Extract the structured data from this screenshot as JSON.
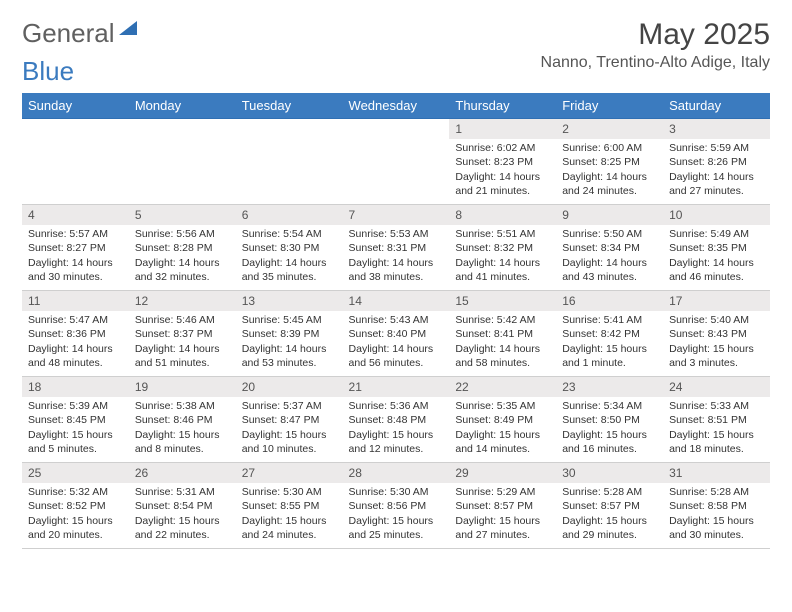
{
  "brand": {
    "part1": "General",
    "part2": "Blue"
  },
  "title": "May 2025",
  "location": "Nanno, Trentino-Alto Adige, Italy",
  "colors": {
    "header_bg": "#3b7bbf",
    "header_text": "#ffffff",
    "daynum_bg": "#eceaea",
    "border": "#cfcfcf",
    "text": "#333333",
    "background": "#ffffff"
  },
  "typography": {
    "title_fontsize": 30,
    "location_fontsize": 16,
    "header_fontsize": 13,
    "cell_fontsize": 10.5
  },
  "day_headers": [
    "Sunday",
    "Monday",
    "Tuesday",
    "Wednesday",
    "Thursday",
    "Friday",
    "Saturday"
  ],
  "weeks": [
    [
      null,
      null,
      null,
      null,
      {
        "n": "1",
        "sr": "6:02 AM",
        "ss": "8:23 PM",
        "dl": "14 hours and 21 minutes."
      },
      {
        "n": "2",
        "sr": "6:00 AM",
        "ss": "8:25 PM",
        "dl": "14 hours and 24 minutes."
      },
      {
        "n": "3",
        "sr": "5:59 AM",
        "ss": "8:26 PM",
        "dl": "14 hours and 27 minutes."
      }
    ],
    [
      {
        "n": "4",
        "sr": "5:57 AM",
        "ss": "8:27 PM",
        "dl": "14 hours and 30 minutes."
      },
      {
        "n": "5",
        "sr": "5:56 AM",
        "ss": "8:28 PM",
        "dl": "14 hours and 32 minutes."
      },
      {
        "n": "6",
        "sr": "5:54 AM",
        "ss": "8:30 PM",
        "dl": "14 hours and 35 minutes."
      },
      {
        "n": "7",
        "sr": "5:53 AM",
        "ss": "8:31 PM",
        "dl": "14 hours and 38 minutes."
      },
      {
        "n": "8",
        "sr": "5:51 AM",
        "ss": "8:32 PM",
        "dl": "14 hours and 41 minutes."
      },
      {
        "n": "9",
        "sr": "5:50 AM",
        "ss": "8:34 PM",
        "dl": "14 hours and 43 minutes."
      },
      {
        "n": "10",
        "sr": "5:49 AM",
        "ss": "8:35 PM",
        "dl": "14 hours and 46 minutes."
      }
    ],
    [
      {
        "n": "11",
        "sr": "5:47 AM",
        "ss": "8:36 PM",
        "dl": "14 hours and 48 minutes."
      },
      {
        "n": "12",
        "sr": "5:46 AM",
        "ss": "8:37 PM",
        "dl": "14 hours and 51 minutes."
      },
      {
        "n": "13",
        "sr": "5:45 AM",
        "ss": "8:39 PM",
        "dl": "14 hours and 53 minutes."
      },
      {
        "n": "14",
        "sr": "5:43 AM",
        "ss": "8:40 PM",
        "dl": "14 hours and 56 minutes."
      },
      {
        "n": "15",
        "sr": "5:42 AM",
        "ss": "8:41 PM",
        "dl": "14 hours and 58 minutes."
      },
      {
        "n": "16",
        "sr": "5:41 AM",
        "ss": "8:42 PM",
        "dl": "15 hours and 1 minute."
      },
      {
        "n": "17",
        "sr": "5:40 AM",
        "ss": "8:43 PM",
        "dl": "15 hours and 3 minutes."
      }
    ],
    [
      {
        "n": "18",
        "sr": "5:39 AM",
        "ss": "8:45 PM",
        "dl": "15 hours and 5 minutes."
      },
      {
        "n": "19",
        "sr": "5:38 AM",
        "ss": "8:46 PM",
        "dl": "15 hours and 8 minutes."
      },
      {
        "n": "20",
        "sr": "5:37 AM",
        "ss": "8:47 PM",
        "dl": "15 hours and 10 minutes."
      },
      {
        "n": "21",
        "sr": "5:36 AM",
        "ss": "8:48 PM",
        "dl": "15 hours and 12 minutes."
      },
      {
        "n": "22",
        "sr": "5:35 AM",
        "ss": "8:49 PM",
        "dl": "15 hours and 14 minutes."
      },
      {
        "n": "23",
        "sr": "5:34 AM",
        "ss": "8:50 PM",
        "dl": "15 hours and 16 minutes."
      },
      {
        "n": "24",
        "sr": "5:33 AM",
        "ss": "8:51 PM",
        "dl": "15 hours and 18 minutes."
      }
    ],
    [
      {
        "n": "25",
        "sr": "5:32 AM",
        "ss": "8:52 PM",
        "dl": "15 hours and 20 minutes."
      },
      {
        "n": "26",
        "sr": "5:31 AM",
        "ss": "8:54 PM",
        "dl": "15 hours and 22 minutes."
      },
      {
        "n": "27",
        "sr": "5:30 AM",
        "ss": "8:55 PM",
        "dl": "15 hours and 24 minutes."
      },
      {
        "n": "28",
        "sr": "5:30 AM",
        "ss": "8:56 PM",
        "dl": "15 hours and 25 minutes."
      },
      {
        "n": "29",
        "sr": "5:29 AM",
        "ss": "8:57 PM",
        "dl": "15 hours and 27 minutes."
      },
      {
        "n": "30",
        "sr": "5:28 AM",
        "ss": "8:57 PM",
        "dl": "15 hours and 29 minutes."
      },
      {
        "n": "31",
        "sr": "5:28 AM",
        "ss": "8:58 PM",
        "dl": "15 hours and 30 minutes."
      }
    ]
  ],
  "labels": {
    "sunrise": "Sunrise:",
    "sunset": "Sunset:",
    "daylight": "Daylight:"
  }
}
